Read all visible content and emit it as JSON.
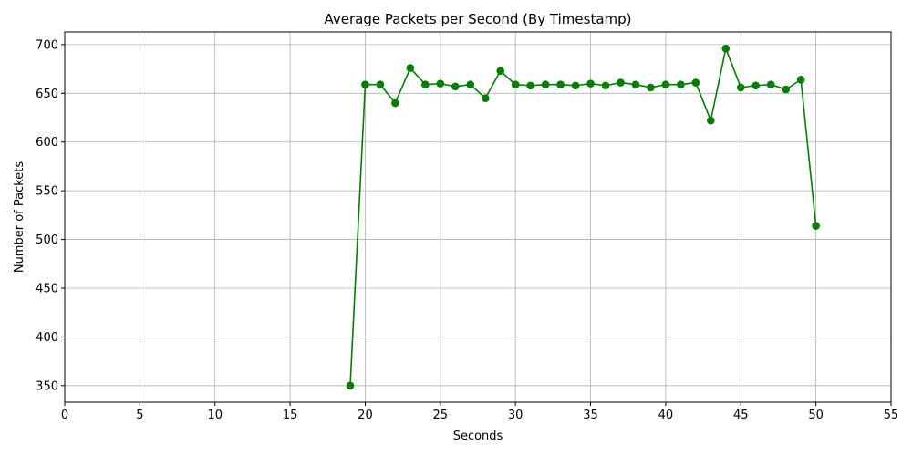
{
  "chart_data": {
    "type": "line",
    "title": "Average Packets per Second (By Timestamp)",
    "xlabel": "Seconds",
    "ylabel": "Number of Packets",
    "xlim": [
      0,
      55
    ],
    "ylim": [
      333,
      713
    ],
    "xticks": [
      0,
      5,
      10,
      15,
      20,
      25,
      30,
      35,
      40,
      45,
      50,
      55
    ],
    "yticks": [
      350,
      400,
      450,
      500,
      550,
      600,
      650,
      700
    ],
    "grid": true,
    "color": "#008000",
    "marker": "circle",
    "series": [
      {
        "x": [
          19,
          20,
          21,
          22,
          23,
          24,
          25,
          26,
          27,
          28,
          29,
          30,
          31,
          32,
          33,
          34,
          35,
          36,
          37,
          38,
          39,
          40,
          41,
          42,
          43,
          44,
          45,
          46,
          47,
          48,
          49,
          50
        ],
        "y": [
          350,
          659,
          659,
          640,
          676,
          659,
          660,
          657,
          659,
          645,
          673,
          659,
          658,
          659,
          659,
          658,
          660,
          658,
          661,
          659,
          656,
          659,
          659,
          661,
          622,
          696,
          656,
          658,
          659,
          654,
          664,
          514
        ]
      }
    ]
  }
}
